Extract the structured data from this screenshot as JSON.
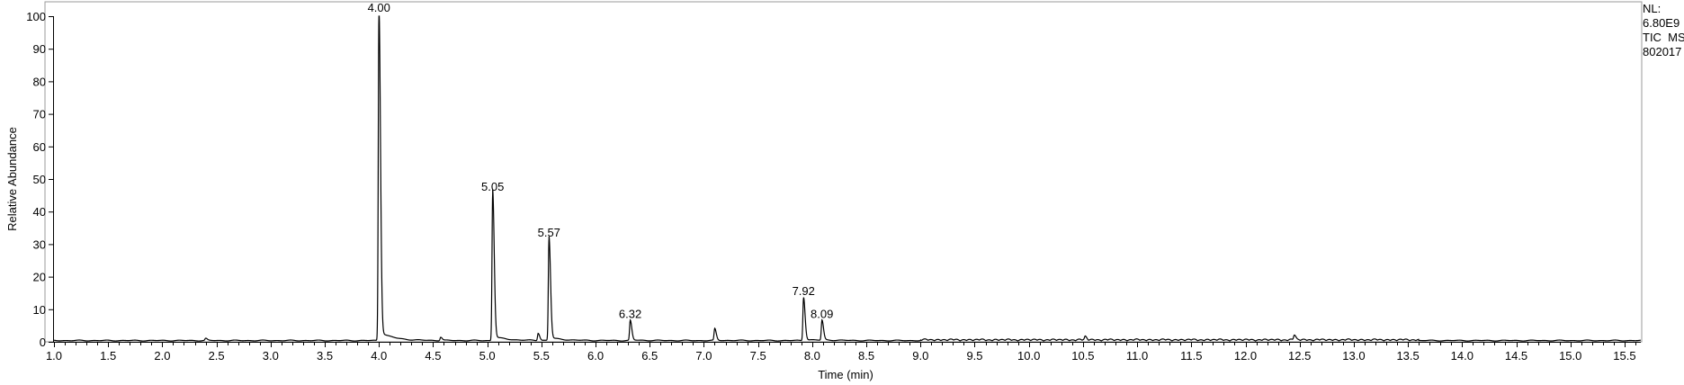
{
  "meta": {
    "nl_label": "NL:",
    "nl_value": "6.80E9",
    "scan_filter": "TIC  MS",
    "file_name": "802017"
  },
  "chart_data": {
    "type": "line",
    "xlabel": "Time (min)",
    "ylabel": "Relative Abundance",
    "xlim": [
      1.0,
      15.65
    ],
    "ylim": [
      0,
      100
    ],
    "x_ticks": [
      "1.0",
      "1.5",
      "2.0",
      "2.5",
      "3.0",
      "3.5",
      "4.0",
      "4.5",
      "5.0",
      "5.5",
      "6.0",
      "6.5",
      "7.0",
      "7.5",
      "8.0",
      "8.5",
      "9.0",
      "9.5",
      "10.0",
      "10.5",
      "11.0",
      "11.5",
      "12.0",
      "12.5",
      "13.0",
      "13.5",
      "14.0",
      "14.5",
      "15.0",
      "15.5"
    ],
    "y_ticks": [
      "0",
      "10",
      "20",
      "30",
      "40",
      "50",
      "60",
      "70",
      "80",
      "90",
      "100"
    ],
    "grid": false,
    "line_color": "#000000",
    "labeled_peaks": [
      {
        "x": 4.0,
        "y": 100,
        "label": "4.00"
      },
      {
        "x": 5.05,
        "y": 45,
        "label": "5.05"
      },
      {
        "x": 5.57,
        "y": 31,
        "label": "5.57"
      },
      {
        "x": 6.32,
        "y": 6,
        "label": "6.32"
      },
      {
        "x": 7.92,
        "y": 13,
        "label": "7.92"
      },
      {
        "x": 8.09,
        "y": 6,
        "label": "8.09"
      }
    ],
    "minor_peaks": [
      {
        "x": 2.4,
        "y": 0.6
      },
      {
        "x": 4.57,
        "y": 1.0
      },
      {
        "x": 5.47,
        "y": 2.2
      },
      {
        "x": 7.1,
        "y": 3.5
      },
      {
        "x": 10.52,
        "y": 1.0
      },
      {
        "x": 12.45,
        "y": 1.5
      }
    ],
    "baseline": 0.4
  }
}
